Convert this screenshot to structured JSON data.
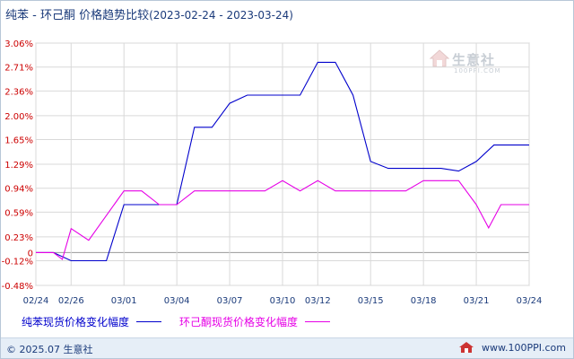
{
  "title": {
    "main": "纯苯 - 环己酮 价格趋势比较",
    "range": "(2023-02-24 - 2023-03-24)"
  },
  "colors": {
    "series1": "#0000cc",
    "series2": "#e600e6",
    "grid": "#d9d9d9",
    "axis_text": "#cc0000",
    "xtick_text": "#1a3a7a"
  },
  "watermark": {
    "text": "生意社",
    "sub": "100PPI.COM"
  },
  "chart_data": {
    "type": "line",
    "title": "纯苯 - 环己酮 价格趋势比较",
    "xlabel": "",
    "ylabel": "",
    "ylim": [
      -0.48,
      3.06
    ],
    "yticks": [
      "3.06%",
      "2.71%",
      "2.36%",
      "2.00%",
      "1.65%",
      "1.29%",
      "0.94%",
      "0.59%",
      "0.23%",
      "0",
      "-0.12%",
      "-0.48%"
    ],
    "ytick_values": [
      3.06,
      2.71,
      2.36,
      2.0,
      1.65,
      1.29,
      0.94,
      0.59,
      0.23,
      0,
      -0.12,
      -0.48
    ],
    "x": [
      "02/24",
      "02/25",
      "02/26",
      "02/27",
      "02/28",
      "03/01",
      "03/02",
      "03/03",
      "03/04",
      "03/05",
      "03/06",
      "03/07",
      "03/08",
      "03/09",
      "03/10",
      "03/11",
      "03/12",
      "03/13",
      "03/14",
      "03/15",
      "03/16",
      "03/17",
      "03/18",
      "03/19",
      "03/20",
      "03/21",
      "03/22",
      "03/23",
      "03/24"
    ],
    "xticks": [
      "02/24",
      "02/26",
      "03/01",
      "03/04",
      "03/07",
      "03/10",
      "03/12",
      "03/15",
      "03/18",
      "03/21",
      "03/24"
    ],
    "xtick_index": [
      0,
      2,
      5,
      8,
      11,
      14,
      16,
      19,
      22,
      25,
      28
    ],
    "grid": true,
    "legend_position": "bottom",
    "series": [
      {
        "name": "纯苯现货价格变化幅度",
        "points": [
          [
            0,
            0
          ],
          [
            1,
            0
          ],
          [
            2,
            -0.12
          ],
          [
            3,
            -0.12
          ],
          [
            4,
            -0.12
          ],
          [
            5,
            0.7
          ],
          [
            6,
            0.7
          ],
          [
            7,
            0.7
          ],
          [
            8,
            0.7
          ],
          [
            9,
            1.83
          ],
          [
            10,
            1.83
          ],
          [
            11,
            2.18
          ],
          [
            12,
            2.3
          ],
          [
            13,
            2.3
          ],
          [
            14,
            2.3
          ],
          [
            15,
            2.3
          ],
          [
            16,
            2.78
          ],
          [
            17,
            2.78
          ],
          [
            18,
            2.3
          ],
          [
            19,
            1.33
          ],
          [
            20,
            1.23
          ],
          [
            21,
            1.23
          ],
          [
            22,
            1.23
          ],
          [
            23,
            1.23
          ],
          [
            24,
            1.19
          ],
          [
            25,
            1.33
          ],
          [
            26,
            1.57
          ],
          [
            27,
            1.57
          ],
          [
            28,
            1.57
          ]
        ]
      },
      {
        "name": "环己酮现货价格变化幅度",
        "points": [
          [
            0,
            0
          ],
          [
            1,
            0
          ],
          [
            1.5,
            -0.1
          ],
          [
            2,
            0.35
          ],
          [
            3,
            0.18
          ],
          [
            5,
            0.9
          ],
          [
            6,
            0.9
          ],
          [
            7,
            0.7
          ],
          [
            8,
            0.7
          ],
          [
            9,
            0.9
          ],
          [
            10,
            0.9
          ],
          [
            11,
            0.9
          ],
          [
            12,
            0.9
          ],
          [
            13,
            0.9
          ],
          [
            14,
            1.05
          ],
          [
            15,
            0.9
          ],
          [
            16,
            1.05
          ],
          [
            17,
            0.9
          ],
          [
            18,
            0.9
          ],
          [
            19,
            0.9
          ],
          [
            20,
            0.9
          ],
          [
            21,
            0.9
          ],
          [
            22,
            1.05
          ],
          [
            23,
            1.05
          ],
          [
            24,
            1.05
          ],
          [
            25,
            0.7
          ],
          [
            25.7,
            0.36
          ],
          [
            26.4,
            0.7
          ],
          [
            27,
            0.7
          ],
          [
            28,
            0.7
          ]
        ]
      }
    ]
  },
  "footer": {
    "copyright": "© 2025.07 生意社",
    "site": "www.100PPI.com"
  }
}
